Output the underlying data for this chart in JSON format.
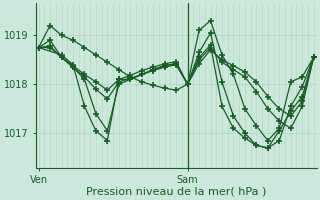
{
  "background_color": "#cce8dc",
  "grid_color_v": "#b0d4c0",
  "grid_color_h": "#b0d4c0",
  "line_color": "#1a5c28",
  "marker": "+",
  "markersize": 4,
  "markeredgewidth": 1.2,
  "linewidth": 0.9,
  "xlabel": "Pression niveau de la mer( hPa )",
  "xlabel_fontsize": 8,
  "yticks": [
    1017,
    1018,
    1019
  ],
  "ylim": [
    1016.3,
    1019.65
  ],
  "xlim": [
    -0.5,
    48.5
  ],
  "ven_x": 0,
  "sam_x": 26,
  "tick_label_fontsize": 7,
  "n_vgrid": 48,
  "series": [
    [
      0,
      1018.75,
      2,
      1019.2,
      4,
      1019.0,
      6,
      1018.9,
      8,
      1018.75,
      10,
      1018.6,
      12,
      1018.45,
      14,
      1018.3,
      16,
      1018.15,
      18,
      1018.05,
      20,
      1017.98,
      22,
      1017.92,
      24,
      1017.88,
      26,
      1018.0,
      28,
      1019.1,
      30,
      1019.3,
      32,
      1018.6,
      34,
      1018.2,
      36,
      1017.5,
      38,
      1017.15,
      40,
      1016.85,
      42,
      1017.1,
      44,
      1018.05,
      46,
      1018.15,
      48,
      1018.55
    ],
    [
      0,
      1018.75,
      4,
      1018.6,
      6,
      1018.4,
      8,
      1017.55,
      10,
      1017.05,
      12,
      1016.85,
      14,
      1018.1,
      16,
      1018.1,
      18,
      1018.2,
      20,
      1018.28,
      22,
      1018.35,
      24,
      1018.4,
      26,
      1018.0,
      28,
      1018.65,
      30,
      1019.05,
      32,
      1018.05,
      34,
      1017.35,
      36,
      1017.0,
      38,
      1016.75,
      40,
      1016.7,
      42,
      1016.85,
      44,
      1017.55,
      46,
      1017.95,
      48,
      1018.55
    ],
    [
      0,
      1018.75,
      2,
      1018.9,
      4,
      1018.55,
      6,
      1018.35,
      8,
      1018.1,
      10,
      1017.4,
      12,
      1017.05,
      14,
      1018.0,
      16,
      1018.1,
      18,
      1018.2,
      20,
      1018.3,
      22,
      1018.38,
      24,
      1018.42,
      26,
      1018.0,
      28,
      1018.55,
      30,
      1018.8,
      32,
      1017.55,
      34,
      1017.1,
      36,
      1016.9,
      38,
      1016.75,
      40,
      1016.7,
      42,
      1017.05,
      44,
      1017.45,
      46,
      1017.75,
      48,
      1018.55
    ],
    [
      0,
      1018.75,
      2,
      1018.78,
      4,
      1018.55,
      6,
      1018.35,
      8,
      1018.15,
      10,
      1017.9,
      12,
      1017.7,
      14,
      1018.05,
      16,
      1018.12,
      18,
      1018.2,
      20,
      1018.3,
      22,
      1018.38,
      24,
      1018.42,
      26,
      1018.0,
      28,
      1018.5,
      30,
      1018.75,
      32,
      1018.45,
      34,
      1018.3,
      36,
      1018.15,
      38,
      1017.85,
      40,
      1017.5,
      42,
      1017.25,
      44,
      1017.1,
      46,
      1017.55,
      48,
      1018.55
    ],
    [
      0,
      1018.75,
      2,
      1018.75,
      4,
      1018.55,
      6,
      1018.38,
      8,
      1018.2,
      10,
      1018.05,
      12,
      1017.88,
      14,
      1018.1,
      16,
      1018.18,
      18,
      1018.28,
      20,
      1018.35,
      22,
      1018.42,
      24,
      1018.46,
      26,
      1018.0,
      28,
      1018.42,
      30,
      1018.7,
      32,
      1018.5,
      34,
      1018.38,
      36,
      1018.25,
      38,
      1018.05,
      40,
      1017.75,
      42,
      1017.5,
      44,
      1017.35,
      46,
      1017.65,
      48,
      1018.55
    ]
  ]
}
